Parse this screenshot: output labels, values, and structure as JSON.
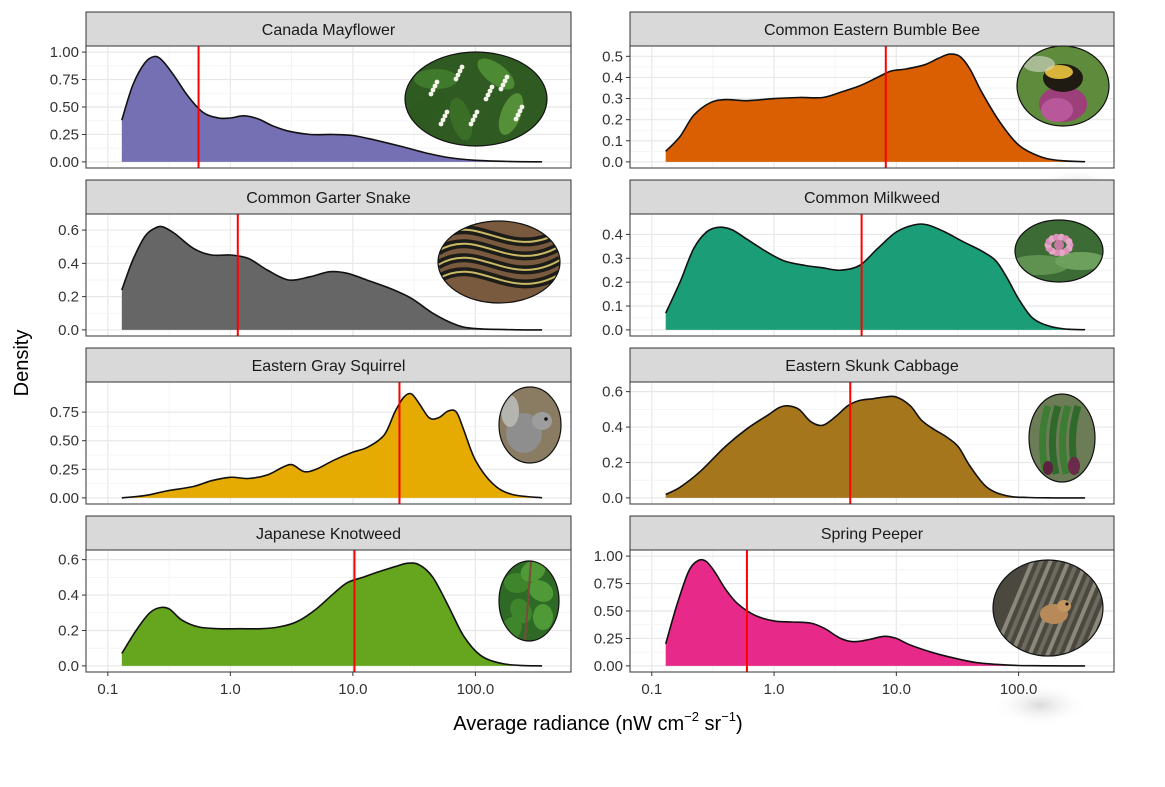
{
  "chart_data": {
    "type": "area",
    "ylabel": "Density",
    "xlabel": {
      "main": "Average radiance (nW cm",
      "sup1": "−2",
      "mid": " sr",
      "sup2": "−1",
      "end": ")"
    },
    "x_scale": "log10",
    "xlim": [
      0.1,
      400
    ],
    "x_ticks": [
      0.1,
      1,
      10,
      100
    ],
    "x_tick_labels": [
      "0.1",
      "1.0",
      "10.0",
      "100.0"
    ],
    "grid": true,
    "reference_line_color": "#ff0000",
    "panels": [
      {
        "title": "Canada Mayflower",
        "color": "#7570b3",
        "photo": "mayflower",
        "ylim": [
          0,
          1.0
        ],
        "y_ticks": [
          0,
          0.25,
          0.5,
          0.75,
          1.0
        ],
        "y_tick_labels": [
          "0.00",
          "0.25",
          "0.50",
          "0.75",
          "1.00"
        ],
        "median": 0.55,
        "x": [
          0.13,
          0.16,
          0.2,
          0.24,
          0.28,
          0.35,
          0.45,
          0.6,
          0.8,
          1.0,
          1.3,
          1.7,
          2.2,
          3.0,
          4.5,
          7.0,
          10,
          15,
          25,
          40,
          60,
          100,
          200,
          350
        ],
        "y": [
          0.38,
          0.7,
          0.9,
          0.96,
          0.92,
          0.78,
          0.6,
          0.45,
          0.4,
          0.4,
          0.42,
          0.39,
          0.33,
          0.28,
          0.25,
          0.25,
          0.24,
          0.2,
          0.14,
          0.08,
          0.04,
          0.015,
          0.003,
          0.001
        ]
      },
      {
        "title": "Common Eastern Bumble Bee",
        "color": "#d95f02",
        "photo": "bumblebee",
        "ylim": [
          0,
          0.52
        ],
        "y_ticks": [
          0,
          0.1,
          0.2,
          0.3,
          0.4,
          0.5
        ],
        "y_tick_labels": [
          "0.0",
          "0.1",
          "0.2",
          "0.3",
          "0.4",
          "0.5"
        ],
        "median": 8.2,
        "x": [
          0.13,
          0.17,
          0.22,
          0.3,
          0.4,
          0.6,
          1.0,
          1.6,
          2.5,
          3.5,
          5.0,
          7.0,
          9.0,
          12,
          17,
          22,
          27,
          33,
          40,
          50,
          70,
          100,
          150,
          220,
          350
        ],
        "y": [
          0.05,
          0.12,
          0.22,
          0.28,
          0.295,
          0.29,
          0.3,
          0.305,
          0.305,
          0.33,
          0.36,
          0.4,
          0.43,
          0.44,
          0.46,
          0.49,
          0.51,
          0.5,
          0.44,
          0.33,
          0.19,
          0.08,
          0.025,
          0.006,
          0.001
        ]
      },
      {
        "title": "Common Garter Snake",
        "color": "#666666",
        "photo": "snake",
        "ylim": [
          0,
          0.66
        ],
        "y_ticks": [
          0,
          0.2,
          0.4,
          0.6
        ],
        "y_tick_labels": [
          "0.0",
          "0.2",
          "0.4",
          "0.6"
        ],
        "median": 1.15,
        "x": [
          0.13,
          0.16,
          0.2,
          0.24,
          0.28,
          0.35,
          0.5,
          0.7,
          1.0,
          1.4,
          2.0,
          3.0,
          4.5,
          6.5,
          9.0,
          13,
          20,
          30,
          45,
          70,
          100,
          200,
          350
        ],
        "y": [
          0.24,
          0.42,
          0.56,
          0.61,
          0.62,
          0.58,
          0.49,
          0.45,
          0.45,
          0.43,
          0.36,
          0.3,
          0.32,
          0.35,
          0.34,
          0.3,
          0.25,
          0.19,
          0.1,
          0.03,
          0.008,
          0.001,
          0.0
        ]
      },
      {
        "title": "Common Milkweed",
        "color": "#1b9e77",
        "photo": "milkweed",
        "ylim": [
          0,
          0.46
        ],
        "y_ticks": [
          0,
          0.1,
          0.2,
          0.3,
          0.4
        ],
        "y_tick_labels": [
          "0.0",
          "0.1",
          "0.2",
          "0.3",
          "0.4"
        ],
        "median": 5.2,
        "x": [
          0.13,
          0.17,
          0.22,
          0.28,
          0.35,
          0.45,
          0.6,
          0.85,
          1.2,
          1.8,
          2.5,
          3.5,
          5.0,
          7.0,
          10,
          14,
          18,
          25,
          35,
          50,
          65,
          80,
          100,
          130,
          180,
          250,
          350
        ],
        "y": [
          0.07,
          0.2,
          0.34,
          0.41,
          0.43,
          0.42,
          0.38,
          0.33,
          0.29,
          0.27,
          0.26,
          0.25,
          0.27,
          0.34,
          0.41,
          0.44,
          0.44,
          0.41,
          0.37,
          0.33,
          0.29,
          0.22,
          0.13,
          0.05,
          0.015,
          0.003,
          0.001
        ]
      },
      {
        "title": "Eastern Gray Squirrel",
        "color": "#e6ab02",
        "photo": "squirrel",
        "ylim": [
          0,
          0.96
        ],
        "y_ticks": [
          0,
          0.25,
          0.5,
          0.75
        ],
        "y_tick_labels": [
          "0.00",
          "0.25",
          "0.50",
          "0.75"
        ],
        "median": 24,
        "x": [
          0.13,
          0.2,
          0.3,
          0.5,
          0.7,
          1.0,
          1.4,
          2.0,
          2.7,
          3.2,
          4.0,
          5.0,
          7.0,
          10,
          13,
          18,
          22,
          26,
          30,
          35,
          42,
          50,
          60,
          70,
          80,
          100,
          140,
          200,
          350
        ],
        "y": [
          0.0,
          0.02,
          0.06,
          0.1,
          0.15,
          0.18,
          0.17,
          0.2,
          0.27,
          0.29,
          0.23,
          0.25,
          0.33,
          0.4,
          0.44,
          0.55,
          0.75,
          0.88,
          0.91,
          0.82,
          0.7,
          0.7,
          0.76,
          0.75,
          0.6,
          0.33,
          0.12,
          0.03,
          0.001
        ]
      },
      {
        "title": "Eastern Skunk Cabbage",
        "color": "#a6761d",
        "photo": "skunkcabbage",
        "ylim": [
          0,
          0.62
        ],
        "y_ticks": [
          0,
          0.2,
          0.4,
          0.6
        ],
        "y_tick_labels": [
          "0.0",
          "0.2",
          "0.4",
          "0.6"
        ],
        "median": 4.2,
        "x": [
          0.13,
          0.17,
          0.25,
          0.4,
          0.6,
          0.9,
          1.1,
          1.3,
          1.6,
          2.0,
          2.5,
          3.2,
          4.0,
          5.0,
          6.5,
          8.0,
          10,
          13,
          16,
          20,
          25,
          32,
          40,
          55,
          80,
          120,
          200,
          350
        ],
        "y": [
          0.02,
          0.06,
          0.15,
          0.29,
          0.39,
          0.47,
          0.51,
          0.52,
          0.5,
          0.43,
          0.41,
          0.46,
          0.52,
          0.55,
          0.56,
          0.57,
          0.57,
          0.52,
          0.44,
          0.39,
          0.35,
          0.29,
          0.18,
          0.06,
          0.012,
          0.002,
          0.0,
          0.0
        ]
      },
      {
        "title": "Japanese Knotweed",
        "color": "#66a61e",
        "photo": "knotweed",
        "ylim": [
          0,
          0.62
        ],
        "y_ticks": [
          0,
          0.2,
          0.4,
          0.6
        ],
        "y_tick_labels": [
          "0.0",
          "0.2",
          "0.4",
          "0.6"
        ],
        "median": 10.3,
        "x": [
          0.13,
          0.17,
          0.22,
          0.27,
          0.32,
          0.4,
          0.55,
          0.8,
          1.2,
          1.8,
          2.5,
          3.5,
          5.0,
          7.0,
          9.0,
          12,
          16,
          22,
          28,
          35,
          45,
          60,
          80,
          110,
          160,
          230,
          350
        ],
        "y": [
          0.07,
          0.2,
          0.3,
          0.33,
          0.32,
          0.26,
          0.22,
          0.21,
          0.21,
          0.21,
          0.22,
          0.25,
          0.32,
          0.41,
          0.47,
          0.5,
          0.53,
          0.56,
          0.58,
          0.57,
          0.5,
          0.34,
          0.17,
          0.06,
          0.015,
          0.003,
          0.0
        ]
      },
      {
        "title": "Spring Peeper",
        "color": "#e7298a",
        "photo": "peeper",
        "ylim": [
          0,
          1.0
        ],
        "y_ticks": [
          0,
          0.25,
          0.5,
          0.75,
          1.0
        ],
        "y_tick_labels": [
          "0.00",
          "0.25",
          "0.50",
          "0.75",
          "1.00"
        ],
        "median": 0.6,
        "x": [
          0.13,
          0.16,
          0.2,
          0.24,
          0.28,
          0.33,
          0.4,
          0.5,
          0.7,
          1.0,
          1.4,
          2.0,
          2.6,
          3.5,
          4.5,
          6.0,
          8.0,
          10,
          13,
          20,
          30,
          45,
          70,
          100,
          160,
          250,
          350
        ],
        "y": [
          0.2,
          0.55,
          0.86,
          0.96,
          0.95,
          0.85,
          0.7,
          0.57,
          0.46,
          0.41,
          0.4,
          0.39,
          0.34,
          0.25,
          0.22,
          0.24,
          0.27,
          0.25,
          0.19,
          0.12,
          0.07,
          0.03,
          0.012,
          0.004,
          0.001,
          0.0,
          0.0
        ]
      }
    ]
  }
}
